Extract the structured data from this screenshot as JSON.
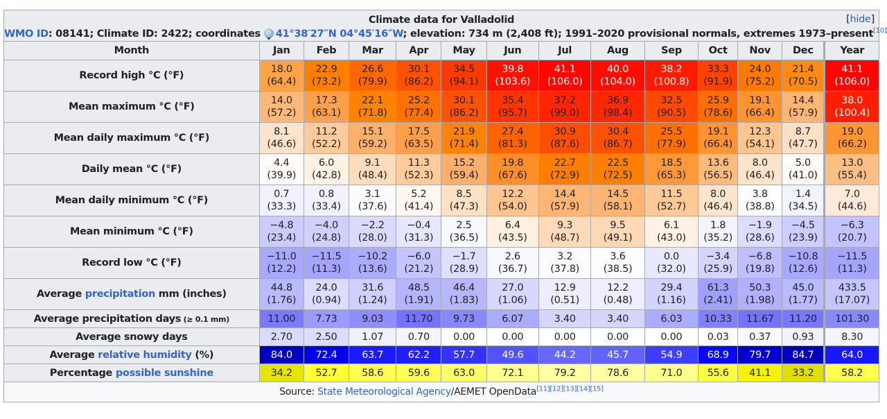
{
  "caption": {
    "title": "Climate data for Valladolid",
    "hide_label": "hide",
    "wmo_link": "WMO ID",
    "wmo_rest": ": 08141; Climate ID: 2422; coordinates ",
    "globe_icon": "globe-icon",
    "coordinates": "41°38′27″N 04°45′16″W",
    "elevation_rest": "; elevation: 734 m (2,408 ft); 1991–2020 provisional normals, extremes 1973–present",
    "ref": "[10]"
  },
  "header": {
    "month_label": "Month",
    "months": [
      "Jan",
      "Feb",
      "Mar",
      "Apr",
      "May",
      "Jun",
      "Jul",
      "Aug",
      "Sep",
      "Oct",
      "Nov",
      "Dec"
    ],
    "year_label": "Year"
  },
  "rows": [
    {
      "label_pre": "Record high °C (°F)",
      "cells": [
        {
          "c": "18.0",
          "f": "(64.4)",
          "bg": "#ffa346",
          "w": false
        },
        {
          "c": "22.9",
          "f": "(73.2)",
          "bg": "#ff8000",
          "w": false
        },
        {
          "c": "26.6",
          "f": "(79.9)",
          "bg": "#ff6704",
          "w": false
        },
        {
          "c": "30.1",
          "f": "(86.2)",
          "bg": "#ff5200",
          "w": false
        },
        {
          "c": "34.5",
          "f": "(94.1)",
          "bg": "#ff3a00",
          "w": false
        },
        {
          "c": "39.8",
          "f": "(103.6)",
          "bg": "#ff1000",
          "w": true
        },
        {
          "c": "41.1",
          "f": "(106.0)",
          "bg": "#ff0500",
          "w": true
        },
        {
          "c": "40.0",
          "f": "(104.0)",
          "bg": "#ff0e00",
          "w": true
        },
        {
          "c": "38.2",
          "f": "(100.8)",
          "bg": "#ff1b00",
          "w": true
        },
        {
          "c": "33.3",
          "f": "(91.9)",
          "bg": "#ff4200",
          "w": false
        },
        {
          "c": "24.0",
          "f": "(75.2)",
          "bg": "#ff7b00",
          "w": false
        },
        {
          "c": "21.4",
          "f": "(70.5)",
          "bg": "#ff8a16",
          "w": false
        },
        {
          "c": "41.1",
          "f": "(106.0)",
          "bg": "#ff0500",
          "w": true
        }
      ]
    },
    {
      "label_pre": "Mean maximum °C (°F)",
      "cells": [
        {
          "c": "14.0",
          "f": "(57.2)",
          "bg": "#ffb877",
          "w": false
        },
        {
          "c": "17.3",
          "f": "(63.1)",
          "bg": "#ffa04a",
          "w": false
        },
        {
          "c": "22.1",
          "f": "(71.8)",
          "bg": "#ff8200",
          "w": false
        },
        {
          "c": "25.2",
          "f": "(77.4)",
          "bg": "#ff7100",
          "w": false
        },
        {
          "c": "30.1",
          "f": "(86.2)",
          "bg": "#ff5200",
          "w": false
        },
        {
          "c": "35.4",
          "f": "(95.7)",
          "bg": "#ff3400",
          "w": false
        },
        {
          "c": "37.2",
          "f": "(99.0)",
          "bg": "#ff2500",
          "w": false
        },
        {
          "c": "36.9",
          "f": "(98.4)",
          "bg": "#ff2800",
          "w": false
        },
        {
          "c": "32.5",
          "f": "(90.5)",
          "bg": "#ff4800",
          "w": false
        },
        {
          "c": "25.9",
          "f": "(78.6)",
          "bg": "#ff6e00",
          "w": false
        },
        {
          "c": "19.1",
          "f": "(66.4)",
          "bg": "#ff9432",
          "w": false
        },
        {
          "c": "14.4",
          "f": "(57.9)",
          "bg": "#ffb574",
          "w": false
        },
        {
          "c": "38.0",
          "f": "(100.4)",
          "bg": "#ff1f00",
          "w": true
        }
      ]
    },
    {
      "label_pre": "Mean daily maximum °C (°F)",
      "cells": [
        {
          "c": "8.1",
          "f": "(46.6)",
          "bg": "#ffe4cc",
          "w": false
        },
        {
          "c": "11.2",
          "f": "(52.2)",
          "bg": "#ffcb9b",
          "w": false
        },
        {
          "c": "15.1",
          "f": "(59.2)",
          "bg": "#ffb06b",
          "w": false
        },
        {
          "c": "17.5",
          "f": "(63.5)",
          "bg": "#ff9f49",
          "w": false
        },
        {
          "c": "21.9",
          "f": "(71.4)",
          "bg": "#ff8308",
          "w": false
        },
        {
          "c": "27.4",
          "f": "(81.3)",
          "bg": "#ff6400",
          "w": false
        },
        {
          "c": "30.9",
          "f": "(87.6)",
          "bg": "#ff4e00",
          "w": false
        },
        {
          "c": "30.4",
          "f": "(86.7)",
          "bg": "#ff5100",
          "w": false
        },
        {
          "c": "25.5",
          "f": "(77.9)",
          "bg": "#ff7000",
          "w": false
        },
        {
          "c": "19.1",
          "f": "(66.4)",
          "bg": "#ff9432",
          "w": false
        },
        {
          "c": "12.3",
          "f": "(54.1)",
          "bg": "#ffc58f",
          "w": false
        },
        {
          "c": "8.7",
          "f": "(47.7)",
          "bg": "#ffe0c4",
          "w": false
        },
        {
          "c": "19.0",
          "f": "(66.2)",
          "bg": "#ff9533",
          "w": false
        }
      ]
    },
    {
      "label_pre": "Daily mean °C (°F)",
      "cells": [
        {
          "c": "4.4",
          "f": "(39.9)",
          "bg": "#fffcf9",
          "w": false
        },
        {
          "c": "6.0",
          "f": "(42.8)",
          "bg": "#fff1e4",
          "w": false
        },
        {
          "c": "9.1",
          "f": "(48.4)",
          "bg": "#ffdcbc",
          "w": false
        },
        {
          "c": "11.3",
          "f": "(52.3)",
          "bg": "#ffcb9a",
          "w": false
        },
        {
          "c": "15.2",
          "f": "(59.4)",
          "bg": "#ffaf6a",
          "w": false
        },
        {
          "c": "19.8",
          "f": "(67.6)",
          "bg": "#ff8f28",
          "w": false
        },
        {
          "c": "22.7",
          "f": "(72.9)",
          "bg": "#ff7e00",
          "w": false
        },
        {
          "c": "22.5",
          "f": "(72.5)",
          "bg": "#ff7f00",
          "w": false
        },
        {
          "c": "18.5",
          "f": "(65.3)",
          "bg": "#ff9839",
          "w": false
        },
        {
          "c": "13.6",
          "f": "(56.5)",
          "bg": "#ffbb7c",
          "w": false
        },
        {
          "c": "8.0",
          "f": "(46.4)",
          "bg": "#ffe4cc",
          "w": false
        },
        {
          "c": "5.0",
          "f": "(41.0)",
          "bg": "#fffaf5",
          "w": false
        },
        {
          "c": "13.0",
          "f": "(55.4)",
          "bg": "#ffbf84",
          "w": false
        }
      ]
    },
    {
      "label_pre": "Mean daily minimum °C (°F)",
      "cells": [
        {
          "c": "0.7",
          "f": "(33.3)",
          "bg": "#f0f0ff",
          "w": false
        },
        {
          "c": "0.8",
          "f": "(33.4)",
          "bg": "#f1f1ff",
          "w": false
        },
        {
          "c": "3.1",
          "f": "(37.6)",
          "bg": "#fcfcff",
          "w": false
        },
        {
          "c": "5.2",
          "f": "(41.4)",
          "bg": "#fff6ee",
          "w": false
        },
        {
          "c": "8.5",
          "f": "(47.3)",
          "bg": "#ffe1c6",
          "w": false
        },
        {
          "c": "12.2",
          "f": "(54.0)",
          "bg": "#ffc590",
          "w": false
        },
        {
          "c": "14.4",
          "f": "(57.9)",
          "bg": "#ffb574",
          "w": false
        },
        {
          "c": "14.5",
          "f": "(58.1)",
          "bg": "#ffb473",
          "w": false
        },
        {
          "c": "11.5",
          "f": "(52.7)",
          "bg": "#ffca98",
          "w": false
        },
        {
          "c": "8.0",
          "f": "(46.4)",
          "bg": "#ffe4cc",
          "w": false
        },
        {
          "c": "3.8",
          "f": "(38.8)",
          "bg": "#fffeff",
          "w": false
        },
        {
          "c": "1.4",
          "f": "(34.5)",
          "bg": "#f3f3ff",
          "w": false
        },
        {
          "c": "7.0",
          "f": "(44.6)",
          "bg": "#ffead9",
          "w": false
        }
      ]
    },
    {
      "label_pre": "Mean minimum °C (°F)",
      "cells": [
        {
          "c": "−4.8",
          "f": "(23.4)",
          "bg": "#cbcbff",
          "w": false
        },
        {
          "c": "−4.0",
          "f": "(24.8)",
          "bg": "#d0d0ff",
          "w": false
        },
        {
          "c": "−2.2",
          "f": "(28.0)",
          "bg": "#dadaff",
          "w": false
        },
        {
          "c": "−0.4",
          "f": "(31.3)",
          "bg": "#e6e6ff",
          "w": false
        },
        {
          "c": "2.5",
          "f": "(36.5)",
          "bg": "#f8f8ff",
          "w": false
        },
        {
          "c": "6.4",
          "f": "(43.5)",
          "bg": "#ffefe0",
          "w": false
        },
        {
          "c": "9.3",
          "f": "(48.7)",
          "bg": "#ffdab8",
          "w": false
        },
        {
          "c": "9.5",
          "f": "(49.1)",
          "bg": "#ffd9b6",
          "w": false
        },
        {
          "c": "6.1",
          "f": "(43.0)",
          "bg": "#fff1e3",
          "w": false
        },
        {
          "c": "1.8",
          "f": "(35.2)",
          "bg": "#f4f4ff",
          "w": false
        },
        {
          "c": "−1.9",
          "f": "(28.6)",
          "bg": "#dcdcff",
          "w": false
        },
        {
          "c": "−4.5",
          "f": "(23.9)",
          "bg": "#cdcdff",
          "w": false
        },
        {
          "c": "−6.3",
          "f": "(20.7)",
          "bg": "#c3c3ff",
          "w": false
        }
      ]
    },
    {
      "label_pre": "Record low °C (°F)",
      "cells": [
        {
          "c": "−11.0",
          "f": "(12.2)",
          "bg": "#a8a8ff",
          "w": false
        },
        {
          "c": "−11.5",
          "f": "(11.3)",
          "bg": "#a5a5ff",
          "w": false
        },
        {
          "c": "−10.2",
          "f": "(13.6)",
          "bg": "#acacff",
          "w": false
        },
        {
          "c": "−6.0",
          "f": "(21.2)",
          "bg": "#c4c4ff",
          "w": false
        },
        {
          "c": "−1.7",
          "f": "(28.9)",
          "bg": "#dedeff",
          "w": false
        },
        {
          "c": "2.6",
          "f": "(36.7)",
          "bg": "#f8f8ff",
          "w": false
        },
        {
          "c": "3.2",
          "f": "(37.8)",
          "bg": "#fcfcff",
          "w": false
        },
        {
          "c": "3.6",
          "f": "(38.5)",
          "bg": "#fdfdff",
          "w": false
        },
        {
          "c": "0.0",
          "f": "(32.0)",
          "bg": "#e8e8ff",
          "w": false
        },
        {
          "c": "−3.4",
          "f": "(25.9)",
          "bg": "#d4d4ff",
          "w": false
        },
        {
          "c": "−6.8",
          "f": "(19.8)",
          "bg": "#bfbfff",
          "w": false
        },
        {
          "c": "−10.8",
          "f": "(12.6)",
          "bg": "#a9a9ff",
          "w": false
        },
        {
          "c": "−11.5",
          "f": "(11.3)",
          "bg": "#a5a5ff",
          "w": false
        }
      ]
    },
    {
      "label_pre": "Average ",
      "label_link": "precipitation",
      "label_post": " mm (inches)",
      "cells": [
        {
          "c": "44.8",
          "f": "(1.76)",
          "bg": "#babaff",
          "w": false
        },
        {
          "c": "24.0",
          "f": "(0.94)",
          "bg": "#dcdcff",
          "w": false
        },
        {
          "c": "31.6",
          "f": "(1.24)",
          "bg": "#d0d0ff",
          "w": false
        },
        {
          "c": "48.5",
          "f": "(1.91)",
          "bg": "#b4b4ff",
          "w": false
        },
        {
          "c": "46.4",
          "f": "(1.83)",
          "bg": "#b7b7ff",
          "w": false
        },
        {
          "c": "27.0",
          "f": "(1.06)",
          "bg": "#d7d7ff",
          "w": false
        },
        {
          "c": "12.9",
          "f": "(0.51)",
          "bg": "#ededff",
          "w": false
        },
        {
          "c": "12.2",
          "f": "(0.48)",
          "bg": "#eeeeff",
          "w": false
        },
        {
          "c": "29.4",
          "f": "(1.16)",
          "bg": "#d3d3ff",
          "w": false
        },
        {
          "c": "61.3",
          "f": "(2.41)",
          "bg": "#a0a0ff",
          "w": false
        },
        {
          "c": "50.3",
          "f": "(1.98)",
          "bg": "#b1b1ff",
          "w": false
        },
        {
          "c": "45.0",
          "f": "(1.77)",
          "bg": "#babaff",
          "w": false
        },
        {
          "c": "433.5",
          "f": "(17.07)",
          "bg": "#c6c6ff",
          "w": false
        }
      ]
    }
  ],
  "single_rows": [
    {
      "label_pre": "Average precipitation days",
      "label_small": " (≥ 0.1 mm)",
      "cells": [
        {
          "v": "11.00",
          "bg": "#7a7aff",
          "w": false
        },
        {
          "v": "7.73",
          "bg": "#9b9bff",
          "w": false
        },
        {
          "v": "9.03",
          "bg": "#8e8eff",
          "w": false
        },
        {
          "v": "11.70",
          "bg": "#7373ff",
          "w": false
        },
        {
          "v": "9.73",
          "bg": "#8787ff",
          "w": false
        },
        {
          "v": "6.07",
          "bg": "#ababff",
          "w": false
        },
        {
          "v": "3.40",
          "bg": "#d5d5ff",
          "w": false
        },
        {
          "v": "3.40",
          "bg": "#d5d5ff",
          "w": false
        },
        {
          "v": "6.03",
          "bg": "#acacff",
          "w": false
        },
        {
          "v": "10.33",
          "bg": "#8181ff",
          "w": false
        },
        {
          "v": "11.67",
          "bg": "#7373ff",
          "w": false
        },
        {
          "v": "11.20",
          "bg": "#7878ff",
          "w": false
        },
        {
          "v": "101.30",
          "bg": "#8888ff",
          "w": false
        }
      ]
    },
    {
      "label_pre": "Average snowy days",
      "cells": [
        {
          "v": "2.70",
          "bg": "#dadaff",
          "w": false
        },
        {
          "v": "2.50",
          "bg": "#dddcff",
          "w": false
        },
        {
          "v": "1.07",
          "bg": "#f0f0ff",
          "w": false
        },
        {
          "v": "0.70",
          "bg": "#f5f5ff",
          "w": false
        },
        {
          "v": "0.00",
          "bg": "#ffffff",
          "w": false
        },
        {
          "v": "0.00",
          "bg": "#ffffff",
          "w": false
        },
        {
          "v": "0.00",
          "bg": "#ffffff",
          "w": false
        },
        {
          "v": "0.00",
          "bg": "#ffffff",
          "w": false
        },
        {
          "v": "0.00",
          "bg": "#ffffff",
          "w": false
        },
        {
          "v": "0.03",
          "bg": "#ffffff",
          "w": false
        },
        {
          "v": "0.37",
          "bg": "#fafaff",
          "w": false
        },
        {
          "v": "0.93",
          "bg": "#f2f2ff",
          "w": false
        },
        {
          "v": "8.30",
          "bg": "#f5f5ff",
          "w": false
        }
      ]
    },
    {
      "label_pre": "Average ",
      "label_link": "relative humidity",
      "label_post": " (%)",
      "cells": [
        {
          "v": "84.0",
          "bg": "#0000c2",
          "w": true
        },
        {
          "v": "72.4",
          "bg": "#0000f0",
          "w": true
        },
        {
          "v": "63.7",
          "bg": "#1a1aff",
          "w": true
        },
        {
          "v": "62.2",
          "bg": "#2020ff",
          "w": true
        },
        {
          "v": "57.7",
          "bg": "#3333ff",
          "w": true
        },
        {
          "v": "49.6",
          "bg": "#5252ff",
          "w": true
        },
        {
          "v": "44.2",
          "bg": "#6767ff",
          "w": true
        },
        {
          "v": "45.7",
          "bg": "#6262ff",
          "w": true
        },
        {
          "v": "54.9",
          "bg": "#3e3eff",
          "w": true
        },
        {
          "v": "68.9",
          "bg": "#0707ff",
          "w": true
        },
        {
          "v": "79.7",
          "bg": "#0000d3",
          "w": true
        },
        {
          "v": "84.7",
          "bg": "#0000bf",
          "w": true
        },
        {
          "v": "64.0",
          "bg": "#1818ff",
          "w": true
        }
      ]
    },
    {
      "label_pre": "Percentage ",
      "label_link": "possible sunshine",
      "cells": [
        {
          "v": "34.2",
          "bg": "#e5e500",
          "w": false
        },
        {
          "v": "52.7",
          "bg": "#ffff33",
          "w": false
        },
        {
          "v": "58.6",
          "bg": "#ffff51",
          "w": false
        },
        {
          "v": "59.6",
          "bg": "#ffff56",
          "w": false
        },
        {
          "v": "63.0",
          "bg": "#ffff67",
          "w": false
        },
        {
          "v": "72.1",
          "bg": "#ffff8f",
          "w": false
        },
        {
          "v": "79.2",
          "bg": "#ffffa3",
          "w": false
        },
        {
          "v": "78.6",
          "bg": "#ffffa1",
          "w": false
        },
        {
          "v": "71.0",
          "bg": "#ffff8b",
          "w": false
        },
        {
          "v": "55.6",
          "bg": "#ffff42",
          "w": false
        },
        {
          "v": "41.1",
          "bg": "#f4f400",
          "w": false
        },
        {
          "v": "33.2",
          "bg": "#e0e000",
          "w": false
        },
        {
          "v": "58.2",
          "bg": "#ffff4f",
          "w": false
        }
      ]
    }
  ],
  "source": {
    "prefix": "Source: ",
    "link": "State Meteorological Agency",
    "suffix": "/AEMET OpenData",
    "refs": "[11][12][13][14][15]"
  }
}
